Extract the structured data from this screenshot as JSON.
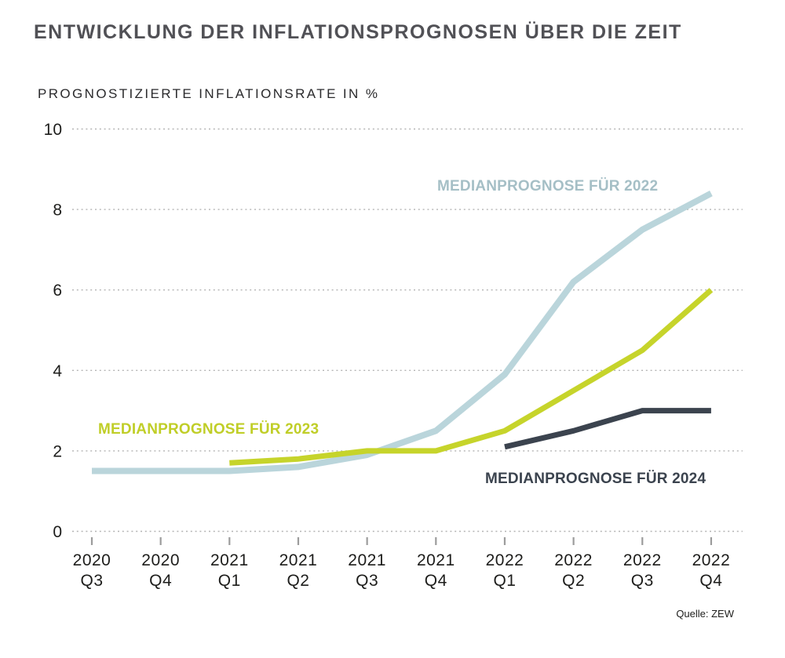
{
  "header": {
    "title": "ENTWICKLUNG DER INFLATIONSPROGNOSEN ÜBER DIE ZEIT",
    "subtitle": "PROGNOSTIZIERTE INFLATIONSRATE IN %"
  },
  "source": {
    "label": "Quelle: ZEW"
  },
  "colors": {
    "title": "#515156",
    "subtitle": "#2a2a2c",
    "axis_text": "#1d1d1b",
    "grid": "#b4b4b4",
    "tick": "#9c9c9c"
  },
  "chart_data": {
    "type": "line",
    "title": "ENTWICKLUNG DER INFLATIONSPROGNOSEN ÜBER DIE ZEIT",
    "ylabel": "PROGNOSTIZIERTE INFLATIONSRATE IN %",
    "xlabel": "",
    "categories": [
      "2020 Q3",
      "2020 Q4",
      "2021 Q1",
      "2021 Q2",
      "2021 Q3",
      "2021 Q4",
      "2022 Q1",
      "2022 Q2",
      "2022 Q3",
      "2022 Q4"
    ],
    "y_ticks": [
      0,
      2,
      4,
      6,
      8,
      10
    ],
    "ylim": [
      0,
      10
    ],
    "grid": "horizontal-dotted",
    "legend_position": "inline-labels-at-lines",
    "series": [
      {
        "name": "MEDIANPROGNOSE FÜR 2022",
        "color": "#bad5db",
        "label_color": "#a5bfc6",
        "stroke_width": 8,
        "values": [
          1.5,
          1.5,
          1.5,
          1.6,
          1.9,
          2.5,
          3.9,
          6.2,
          7.5,
          8.4
        ]
      },
      {
        "name": "MEDIANPROGNOSE FÜR 2023",
        "color": "#c6d42b",
        "label_color": "#c0ce28",
        "stroke_width": 7,
        "values": [
          null,
          null,
          1.7,
          1.8,
          2.0,
          2.0,
          2.5,
          3.5,
          4.5,
          6.0
        ]
      },
      {
        "name": "MEDIANPROGNOSE FÜR 2024",
        "color": "#3b434e",
        "label_color": "#3b434e",
        "stroke_width": 7,
        "values": [
          null,
          null,
          null,
          null,
          null,
          null,
          2.1,
          2.5,
          3.0,
          3.0
        ]
      }
    ],
    "source": "Quelle: ZEW"
  }
}
